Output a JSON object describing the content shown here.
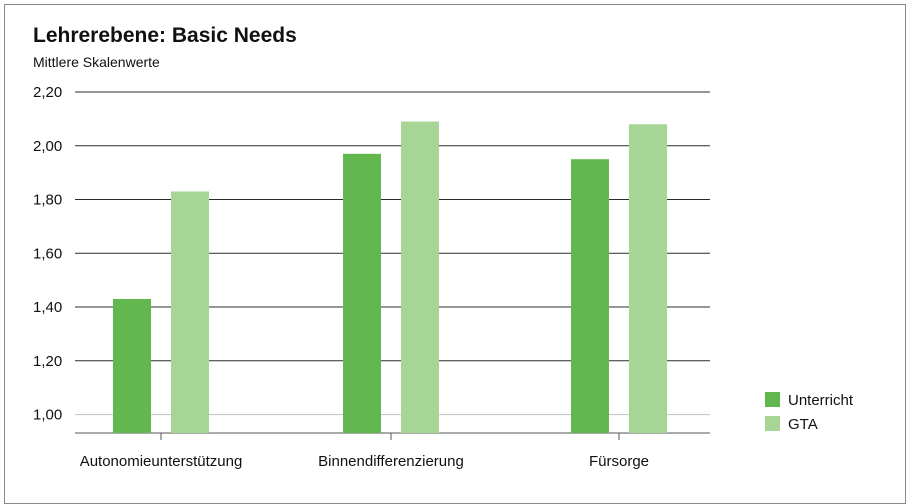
{
  "chart_data": {
    "type": "bar",
    "title": "Lehrerebene: Basic Needs",
    "subtitle": "Mittlere Skalenwerte",
    "categories": [
      "Autonomieunterstützung",
      "Binnendifferenzierung",
      "Fürsorge"
    ],
    "series": [
      {
        "name": "Unterricht",
        "values": [
          1.43,
          1.97,
          1.95
        ],
        "color": "#62b84f"
      },
      {
        "name": "GTA",
        "values": [
          1.83,
          2.09,
          2.08
        ],
        "color": "#a6d595"
      }
    ],
    "ylim": [
      0.95,
      2.2
    ],
    "yticks": [
      1.0,
      1.2,
      1.4,
      1.6,
      1.8,
      2.0,
      2.2
    ],
    "ytick_labels": [
      "1,00",
      "1,20",
      "1,40",
      "1,60",
      "1,80",
      "2,00",
      "2,20"
    ],
    "grid": true,
    "legend": "right"
  }
}
